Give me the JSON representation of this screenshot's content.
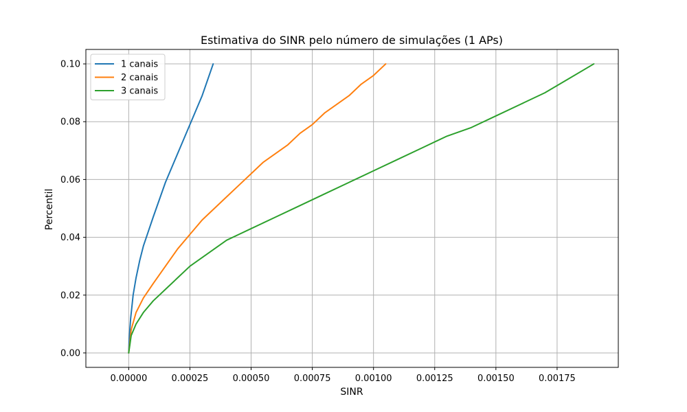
{
  "chart_data": {
    "type": "line",
    "title": "Estimativa do SINR pelo número de simulações (1 APs)",
    "xlabel": "SINR",
    "ylabel": "Percentil",
    "xlim": [
      -0.000175,
      0.002
    ],
    "ylim": [
      -0.005,
      0.105
    ],
    "xticks": [
      0.0,
      0.00025,
      0.0005,
      0.00075,
      0.001,
      0.00125,
      0.0015,
      0.00175
    ],
    "xtick_labels": [
      "0.00000",
      "0.00025",
      "0.00050",
      "0.00075",
      "0.00100",
      "0.00125",
      "0.00150",
      "0.00175"
    ],
    "yticks": [
      0.0,
      0.02,
      0.04,
      0.06,
      0.08,
      0.1
    ],
    "ytick_labels": [
      "0.00",
      "0.02",
      "0.04",
      "0.06",
      "0.08",
      "0.10"
    ],
    "grid": true,
    "legend_position": "top-left",
    "series": [
      {
        "name": "1 canais",
        "color": "#1f77b4",
        "x": [
          0.0,
          2e-06,
          8e-06,
          1.8e-05,
          3e-05,
          4.5e-05,
          6e-05,
          8e-05,
          0.0001,
          0.000125,
          0.00015,
          0.00018,
          0.00021,
          0.00024,
          0.00027,
          0.0003,
          0.000345
        ],
        "y": [
          0.0,
          0.005,
          0.012,
          0.02,
          0.026,
          0.032,
          0.037,
          0.042,
          0.047,
          0.053,
          0.059,
          0.065,
          0.071,
          0.077,
          0.083,
          0.089,
          0.1
        ]
      },
      {
        "name": "2 canais",
        "color": "#ff7f0e",
        "x": [
          0.0,
          1e-05,
          3e-05,
          6e-05,
          0.0001,
          0.00015,
          0.0002,
          0.00025,
          0.0003,
          0.00035,
          0.0004,
          0.00045,
          0.0005,
          0.00055,
          0.0006,
          0.00065,
          0.0007,
          0.00075,
          0.0008,
          0.00085,
          0.0009,
          0.00095,
          0.001,
          0.00105
        ],
        "y": [
          0.0,
          0.008,
          0.014,
          0.019,
          0.024,
          0.03,
          0.036,
          0.041,
          0.046,
          0.05,
          0.054,
          0.058,
          0.062,
          0.066,
          0.069,
          0.072,
          0.076,
          0.079,
          0.083,
          0.086,
          0.089,
          0.093,
          0.096,
          0.1
        ]
      },
      {
        "name": "3 canais",
        "color": "#2ca02c",
        "x": [
          0.0,
          1e-05,
          3e-05,
          6e-05,
          0.0001,
          0.00015,
          0.0002,
          0.00025,
          0.0003,
          0.00035,
          0.0004,
          0.00045,
          0.0005,
          0.0006,
          0.0007,
          0.0008,
          0.0009,
          0.001,
          0.0011,
          0.0012,
          0.0013,
          0.0014,
          0.0015,
          0.0016,
          0.0017,
          0.0018,
          0.0019
        ],
        "y": [
          0.0,
          0.006,
          0.01,
          0.014,
          0.018,
          0.022,
          0.026,
          0.03,
          0.033,
          0.036,
          0.039,
          0.041,
          0.043,
          0.047,
          0.051,
          0.055,
          0.059,
          0.063,
          0.067,
          0.071,
          0.075,
          0.078,
          0.082,
          0.086,
          0.09,
          0.095,
          0.1
        ]
      }
    ]
  }
}
